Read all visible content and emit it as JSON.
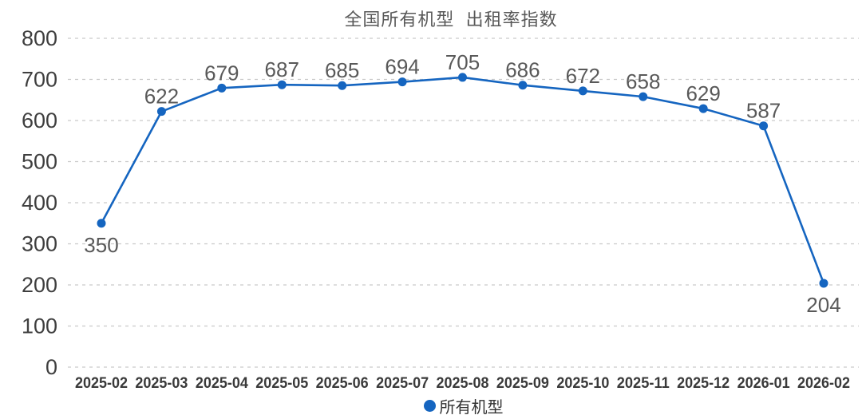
{
  "chart_data": {
    "type": "line",
    "title": "全国所有机型  出租率指数",
    "categories": [
      "2025-02",
      "2025-03",
      "2025-04",
      "2025-05",
      "2025-06",
      "2025-07",
      "2025-08",
      "2025-09",
      "2025-10",
      "2025-11",
      "2025-12",
      "2026-01",
      "2026-02"
    ],
    "series": [
      {
        "name": "所有机型",
        "values": [
          350,
          622,
          679,
          687,
          685,
          694,
          705,
          686,
          672,
          658,
          629,
          587,
          204
        ]
      }
    ],
    "ylim": [
      0,
      800
    ],
    "ytick_step": 100,
    "yticks": [
      0,
      100,
      200,
      300,
      400,
      500,
      600,
      700,
      800
    ],
    "grid": "horizontal-dashed",
    "legend_position": "bottom-center",
    "data_labels_shown": true,
    "colors": {
      "line": "#1565c0",
      "marker": "#1565c0",
      "title": "#595959",
      "data_label": "#595959",
      "y_axis_label": "#3f3f3f",
      "x_axis_label": "#3a3a3a",
      "gridline": "#c9c9c9",
      "legend_text": "#333333"
    }
  }
}
